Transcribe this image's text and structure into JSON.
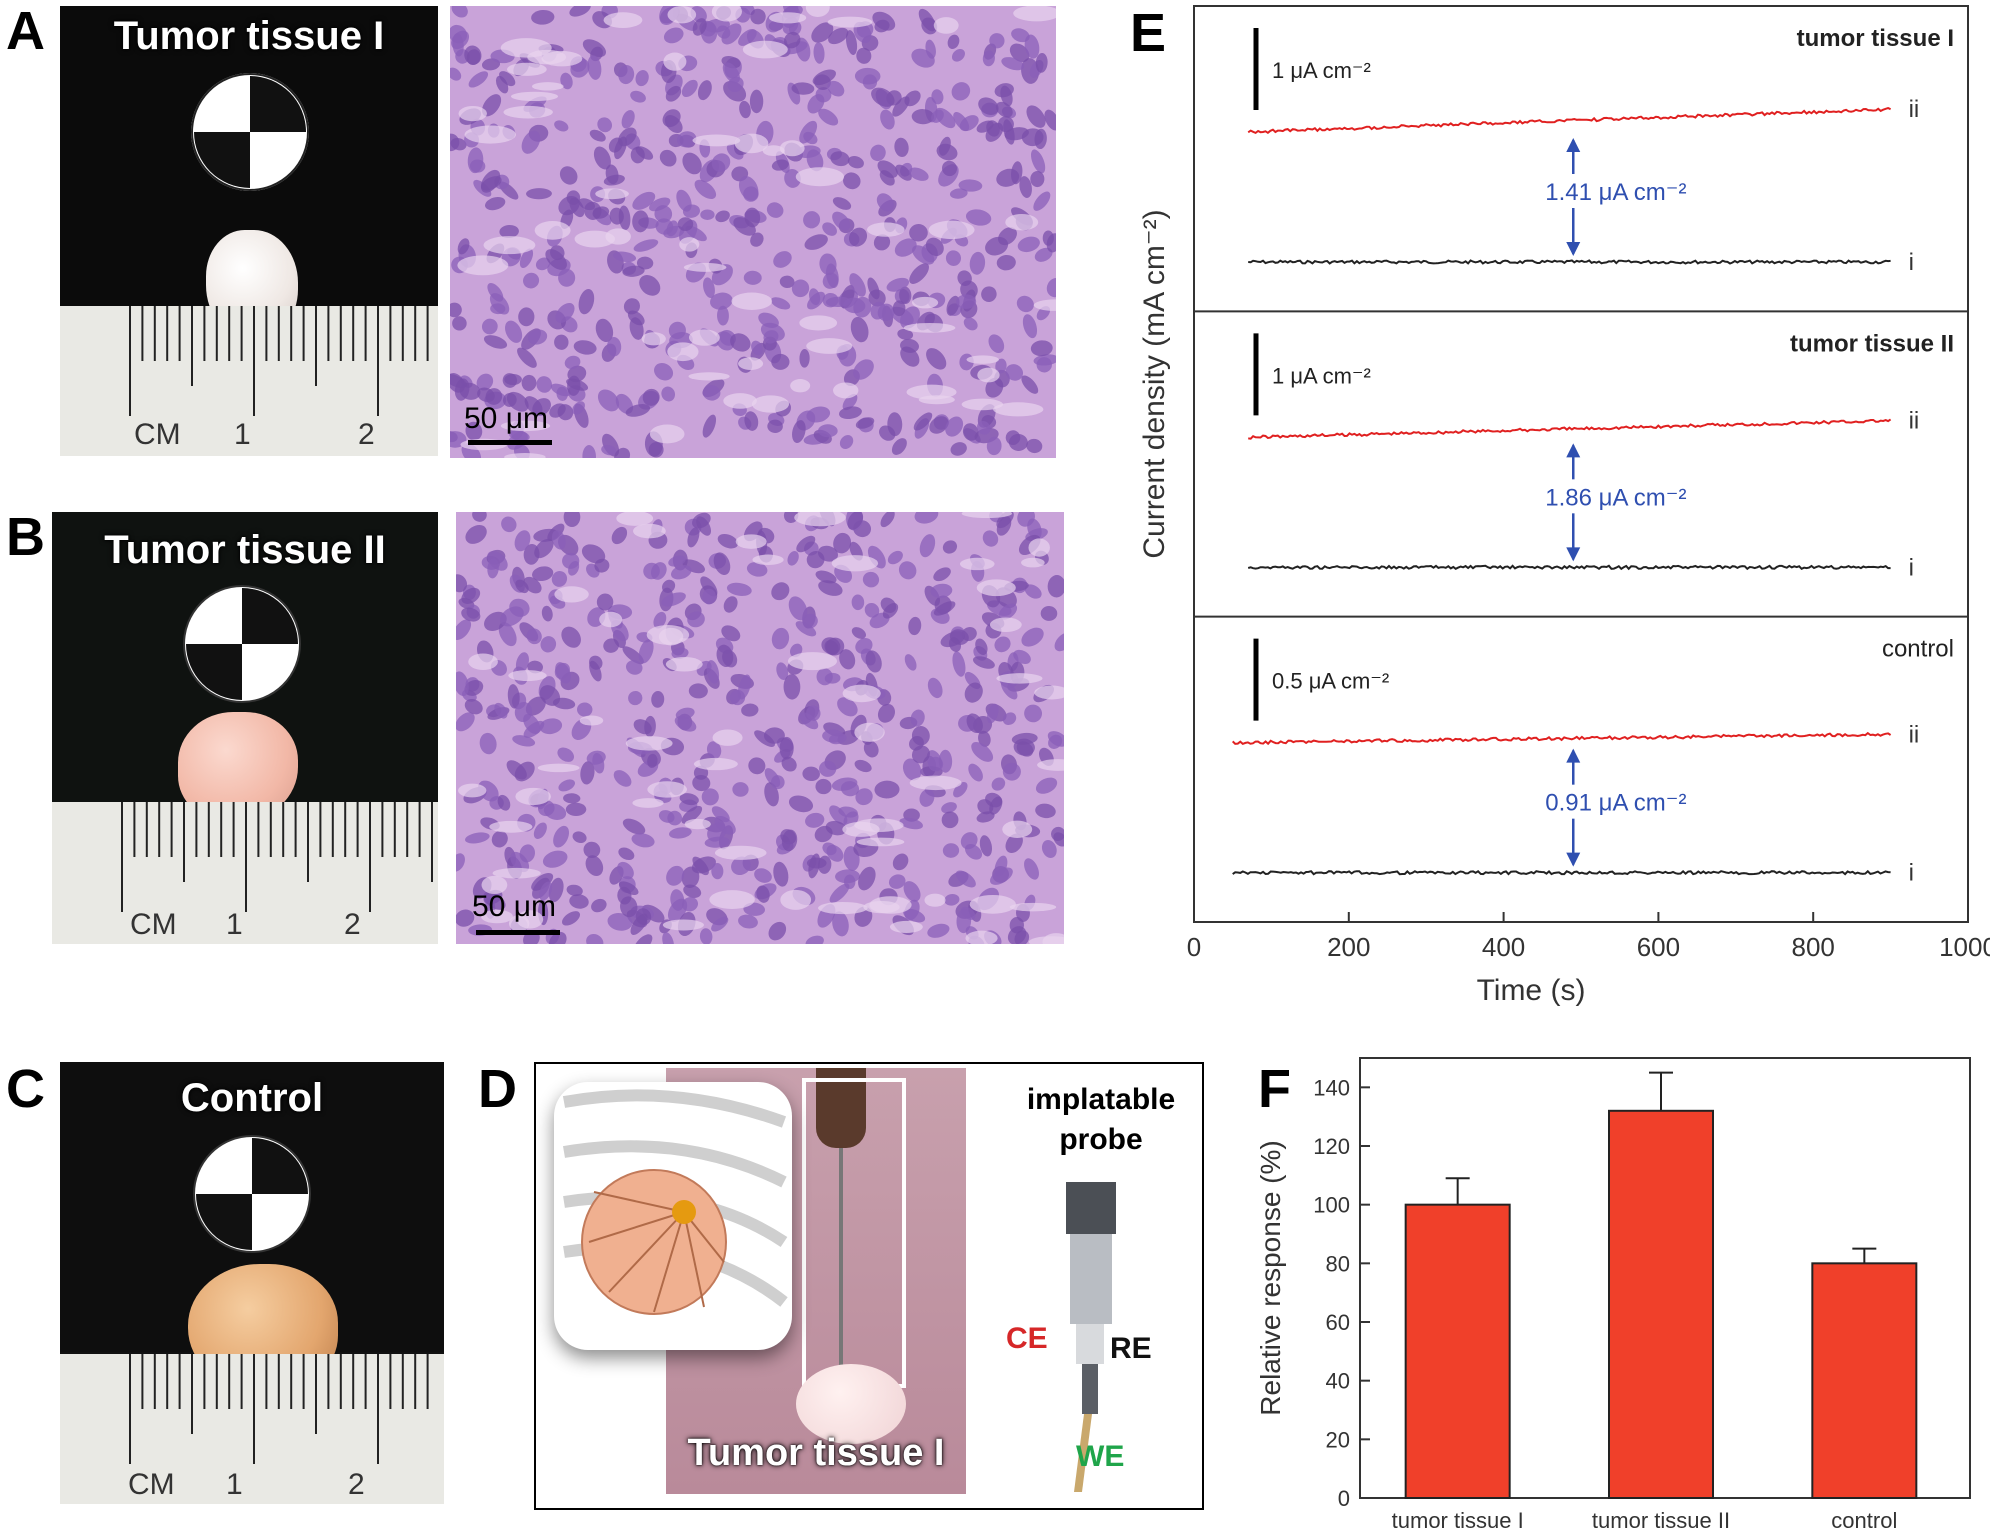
{
  "panels": {
    "A": {
      "letter": "A",
      "title": "Tumor tissue I",
      "scale": "50 μm",
      "ruler": [
        "CM",
        "1",
        "2"
      ]
    },
    "B": {
      "letter": "B",
      "title": "Tumor tissue II",
      "scale": "50 μm",
      "ruler": [
        "CM",
        "1",
        "2"
      ]
    },
    "C": {
      "letter": "C",
      "title": "Control",
      "ruler": [
        "CM",
        "1",
        "2"
      ]
    },
    "D": {
      "letter": "D",
      "photo_title": "Tumor tissue I",
      "probe_title_1": "implatable",
      "probe_title_2": "probe",
      "electrodes": {
        "ce": "CE",
        "re": "RE",
        "we": "WE"
      },
      "colors": {
        "ce": "#d62728",
        "re": "#111111",
        "we": "#1fa54a"
      }
    },
    "E": {
      "letter": "E"
    },
    "F": {
      "letter": "F"
    }
  },
  "chart_data": [
    {
      "type": "line",
      "panel": "E",
      "ylabel": "Current density (mA cm⁻²)",
      "xlabel": "Time (s)",
      "xlim": [
        0,
        1000
      ],
      "xticks": [
        0,
        200,
        400,
        600,
        800,
        1000
      ],
      "subplots": [
        {
          "label": "tumor tissue I",
          "scalebar": "1 μA cm⁻²",
          "difference": "1.41 μA cm⁻²",
          "series": [
            {
              "name": "ii",
              "color": "#e02020",
              "x": [
                70,
                900
              ],
              "y_rel": [
                0,
                0.19
              ]
            },
            {
              "name": "i",
              "color": "#222222",
              "x": [
                70,
                900
              ],
              "y_rel": [
                0,
                0
              ]
            }
          ]
        },
        {
          "label": "tumor tissue II",
          "scalebar": "1 μA cm⁻²",
          "difference": "1.86 μA cm⁻²",
          "series": [
            {
              "name": "ii",
              "color": "#e02020",
              "x": [
                70,
                900
              ],
              "y_rel": [
                0,
                0.14
              ]
            },
            {
              "name": "i",
              "color": "#222222",
              "x": [
                70,
                900
              ],
              "y_rel": [
                0,
                0
              ]
            }
          ]
        },
        {
          "label": "control",
          "scalebar": "0.5 μA cm⁻²",
          "difference": "0.91 μA cm⁻²",
          "series": [
            {
              "name": "ii",
              "color": "#e02020",
              "x": [
                50,
                900
              ],
              "y_rel": [
                0,
                0.07
              ]
            },
            {
              "name": "i",
              "color": "#222222",
              "x": [
                50,
                900
              ],
              "y_rel": [
                0,
                0
              ]
            }
          ]
        }
      ]
    },
    {
      "type": "bar",
      "panel": "F",
      "categories": [
        "tumor tissue I",
        "tumor tissue II",
        "control"
      ],
      "values": [
        100,
        132,
        80
      ],
      "errors": [
        9,
        13,
        5
      ],
      "ylabel": "Relative response (%)",
      "ylim": [
        0,
        150
      ],
      "yticks": [
        0,
        20,
        40,
        60,
        80,
        100,
        120,
        140
      ],
      "bar_color": "#f0402a"
    }
  ]
}
